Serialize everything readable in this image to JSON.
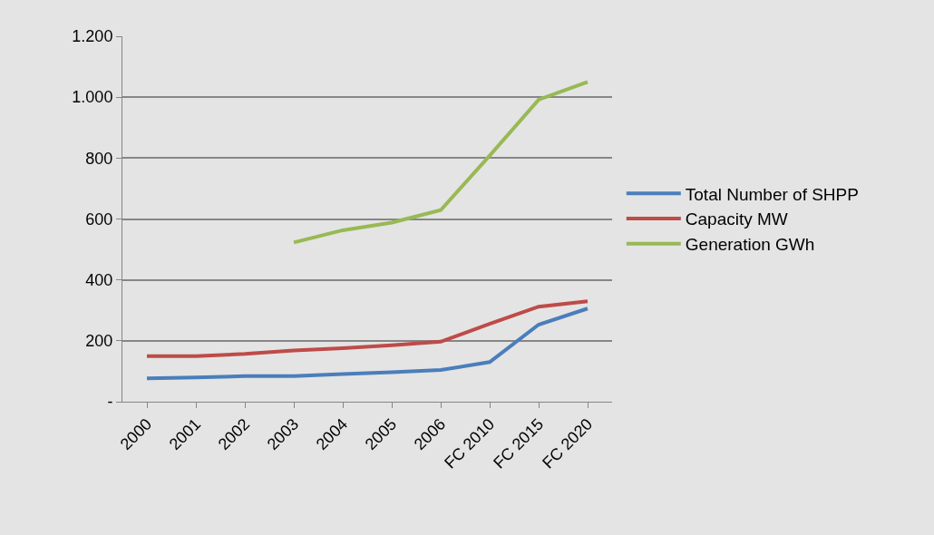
{
  "chart_data": {
    "type": "line",
    "categories": [
      "2000",
      "2001",
      "2002",
      "2003",
      "2004",
      "2005",
      "2006",
      "FC 2010",
      "FC 2015",
      "FC 2020"
    ],
    "series": [
      {
        "name": "Total Number of SHPP",
        "color": "#4a7ebb",
        "values": [
          77,
          80,
          84,
          84,
          91,
          97,
          104,
          130,
          253,
          306
        ]
      },
      {
        "name": "Capacity MW",
        "color": "#be4b48",
        "values": [
          150,
          150,
          157,
          168,
          176,
          185,
          197,
          256,
          312,
          330
        ]
      },
      {
        "name": "Generation GWh",
        "color": "#98b954",
        "values": [
          null,
          null,
          null,
          523,
          563,
          588,
          629,
          808,
          992,
          1050
        ]
      }
    ],
    "ylim": [
      0,
      1200
    ],
    "yticks": [
      {
        "value": 0,
        "label": "-"
      },
      200,
      400,
      600,
      800,
      {
        "value": 1000,
        "label": "1.000"
      },
      {
        "value": 1200,
        "label": "1.200"
      }
    ],
    "grid": "y",
    "legend": "right",
    "marker": "none",
    "line_style": "solid"
  }
}
